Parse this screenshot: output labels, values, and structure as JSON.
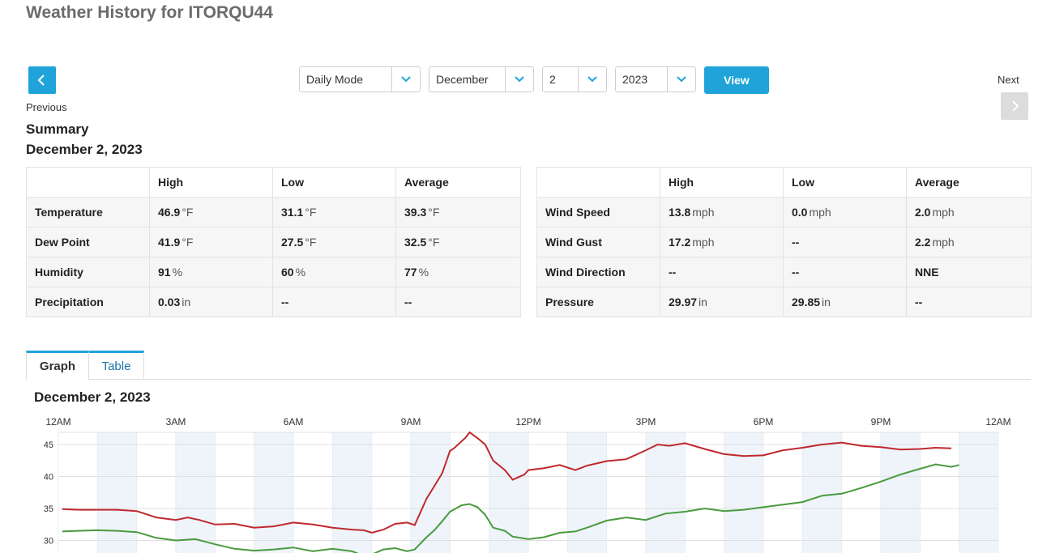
{
  "page": {
    "title": "Weather History for ITORQU44"
  },
  "nav": {
    "previous_label": "Previous",
    "next_label": "Next"
  },
  "controls": {
    "mode": "Daily Mode",
    "month": "December",
    "day": "2",
    "year": "2023",
    "view_label": "View"
  },
  "summary": {
    "title": "Summary",
    "date": "December 2, 2023",
    "headers": [
      "",
      "High",
      "Low",
      "Average"
    ],
    "left_rows": [
      {
        "label": "Temperature",
        "high": "46.9",
        "high_unit": "°F",
        "low": "31.1",
        "low_unit": "°F",
        "avg": "39.3",
        "avg_unit": "°F"
      },
      {
        "label": "Dew Point",
        "high": "41.9",
        "high_unit": "°F",
        "low": "27.5",
        "low_unit": "°F",
        "avg": "32.5",
        "avg_unit": "°F"
      },
      {
        "label": "Humidity",
        "high": "91",
        "high_unit": "%",
        "low": "60",
        "low_unit": "%",
        "avg": "77",
        "avg_unit": "%"
      },
      {
        "label": "Precipitation",
        "high": "0.03",
        "high_unit": "in",
        "low": "--",
        "low_unit": "",
        "avg": "--",
        "avg_unit": ""
      }
    ],
    "right_rows": [
      {
        "label": "Wind Speed",
        "high": "13.8",
        "high_unit": "mph",
        "low": "0.0",
        "low_unit": "mph",
        "avg": "2.0",
        "avg_unit": "mph"
      },
      {
        "label": "Wind Gust",
        "high": "17.2",
        "high_unit": "mph",
        "low": "--",
        "low_unit": "",
        "avg": "2.2",
        "avg_unit": "mph"
      },
      {
        "label": "Wind Direction",
        "high": "--",
        "high_unit": "",
        "low": "--",
        "low_unit": "",
        "avg": "NNE",
        "avg_unit": ""
      },
      {
        "label": "Pressure",
        "high": "29.97",
        "high_unit": "in",
        "low": "29.85",
        "low_unit": "in",
        "avg": "--",
        "avg_unit": ""
      }
    ]
  },
  "tabs": {
    "graph": "Graph",
    "table": "Table"
  },
  "graph": {
    "date": "December 2, 2023"
  },
  "colors": {
    "accent": "#1fa3d9",
    "temperature": "#c0282d",
    "dew_point": "#4a9a3e",
    "band": "#eef4fa"
  },
  "chart_data": {
    "type": "line",
    "x_ticks": [
      "12AM",
      "3AM",
      "6AM",
      "9AM",
      "12PM",
      "3PM",
      "6PM",
      "9PM",
      "12AM"
    ],
    "xlim": [
      0,
      24
    ],
    "y_ticks": [
      "45",
      "40",
      "35",
      "30"
    ],
    "ylim": [
      28,
      47
    ],
    "grid": true,
    "series": [
      {
        "key": "temperature",
        "color": "#c0282d",
        "points": [
          [
            0.1,
            34.9
          ],
          [
            0.5,
            34.8
          ],
          [
            1,
            34.8
          ],
          [
            1.5,
            34.8
          ],
          [
            2,
            34.6
          ],
          [
            2.5,
            33.6
          ],
          [
            3,
            33.2
          ],
          [
            3.3,
            33.6
          ],
          [
            3.6,
            33.2
          ],
          [
            4,
            32.5
          ],
          [
            4.5,
            32.6
          ],
          [
            5,
            32.0
          ],
          [
            5.5,
            32.2
          ],
          [
            6,
            32.8
          ],
          [
            6.5,
            32.5
          ],
          [
            7,
            32.0
          ],
          [
            7.5,
            31.7
          ],
          [
            7.8,
            31.6
          ],
          [
            8,
            31.2
          ],
          [
            8.3,
            31.7
          ],
          [
            8.6,
            32.6
          ],
          [
            8.9,
            32.8
          ],
          [
            9.1,
            32.4
          ],
          [
            9.4,
            36.5
          ],
          [
            9.6,
            38.5
          ],
          [
            9.8,
            40.5
          ],
          [
            10.0,
            44.0
          ],
          [
            10.1,
            44.4
          ],
          [
            10.4,
            46.1
          ],
          [
            10.5,
            46.9
          ],
          [
            10.7,
            46.0
          ],
          [
            10.9,
            45.0
          ],
          [
            11.1,
            42.5
          ],
          [
            11.4,
            41.0
          ],
          [
            11.6,
            39.5
          ],
          [
            11.9,
            40.3
          ],
          [
            12,
            41.0
          ],
          [
            12.4,
            41.3
          ],
          [
            12.8,
            41.8
          ],
          [
            13.2,
            41.0
          ],
          [
            13.5,
            41.7
          ],
          [
            14,
            42.4
          ],
          [
            14.5,
            42.7
          ],
          [
            15,
            44.1
          ],
          [
            15.3,
            45.0
          ],
          [
            15.6,
            44.8
          ],
          [
            16,
            45.2
          ],
          [
            16.5,
            44.3
          ],
          [
            17,
            43.5
          ],
          [
            17.5,
            43.2
          ],
          [
            18,
            43.3
          ],
          [
            18.5,
            44.1
          ],
          [
            19,
            44.5
          ],
          [
            19.5,
            45.0
          ],
          [
            20,
            45.3
          ],
          [
            20.5,
            44.8
          ],
          [
            21,
            44.6
          ],
          [
            21.5,
            44.2
          ],
          [
            22,
            44.3
          ],
          [
            22.4,
            44.5
          ],
          [
            22.8,
            44.4
          ]
        ]
      },
      {
        "key": "dew_point",
        "color": "#4a9a3e",
        "points": [
          [
            0.1,
            31.4
          ],
          [
            0.5,
            31.5
          ],
          [
            1,
            31.6
          ],
          [
            1.5,
            31.5
          ],
          [
            2,
            31.3
          ],
          [
            2.5,
            30.4
          ],
          [
            3,
            30.0
          ],
          [
            3.5,
            30.2
          ],
          [
            4,
            29.4
          ],
          [
            4.5,
            28.7
          ],
          [
            5,
            28.4
          ],
          [
            5.5,
            28.6
          ],
          [
            6,
            28.9
          ],
          [
            6.5,
            28.3
          ],
          [
            7,
            28.7
          ],
          [
            7.5,
            28.3
          ],
          [
            7.8,
            27.6
          ],
          [
            8,
            27.8
          ],
          [
            8.3,
            28.6
          ],
          [
            8.6,
            28.8
          ],
          [
            8.9,
            28.3
          ],
          [
            9.1,
            28.6
          ],
          [
            9.4,
            30.5
          ],
          [
            9.6,
            31.6
          ],
          [
            9.8,
            33.0
          ],
          [
            10,
            34.5
          ],
          [
            10.3,
            35.5
          ],
          [
            10.5,
            35.7
          ],
          [
            10.7,
            35.2
          ],
          [
            10.9,
            34.0
          ],
          [
            11.1,
            32.0
          ],
          [
            11.4,
            31.5
          ],
          [
            11.6,
            30.6
          ],
          [
            12,
            30.2
          ],
          [
            12.4,
            30.5
          ],
          [
            12.8,
            31.2
          ],
          [
            13.2,
            31.4
          ],
          [
            13.5,
            32.0
          ],
          [
            14,
            33.1
          ],
          [
            14.5,
            33.6
          ],
          [
            15,
            33.2
          ],
          [
            15.5,
            34.2
          ],
          [
            16,
            34.5
          ],
          [
            16.5,
            35.0
          ],
          [
            17,
            34.6
          ],
          [
            17.5,
            34.8
          ],
          [
            18,
            35.2
          ],
          [
            18.5,
            35.6
          ],
          [
            19,
            36.0
          ],
          [
            19.5,
            37.0
          ],
          [
            20,
            37.3
          ],
          [
            20.5,
            38.2
          ],
          [
            21,
            39.2
          ],
          [
            21.5,
            40.3
          ],
          [
            22,
            41.2
          ],
          [
            22.4,
            41.9
          ],
          [
            22.8,
            41.5
          ],
          [
            23,
            41.8
          ]
        ]
      }
    ]
  }
}
